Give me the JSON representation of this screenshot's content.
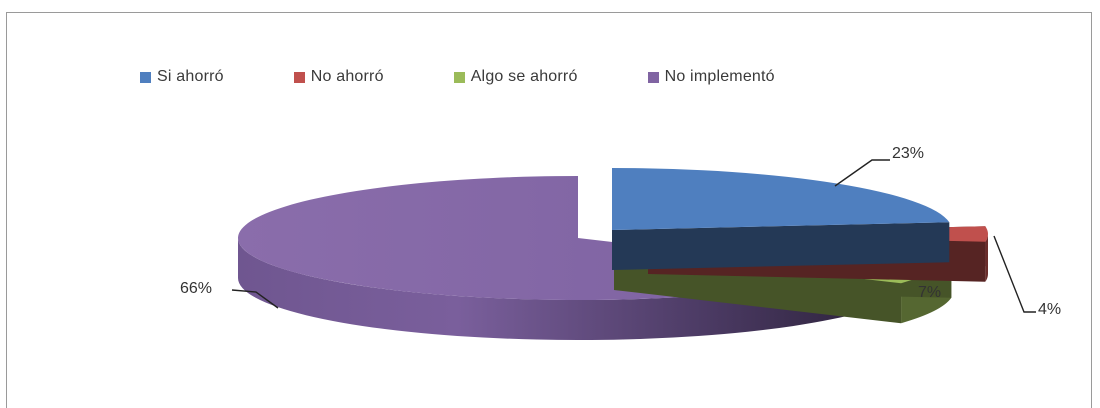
{
  "colors": {
    "si_ahorro": "#4f7fbf",
    "no_ahorro": "#c0504d",
    "algo_se_ahorro": "#9bbb59",
    "no_implemento": "#8064a2"
  },
  "legend": [
    {
      "label": "Si ahorró",
      "color": "#4f7fbf"
    },
    {
      "label": "No ahorró",
      "color": "#c0504d"
    },
    {
      "label": "Algo se ahorró",
      "color": "#9bbb59"
    },
    {
      "label": "No implementó",
      "color": "#8064a2"
    }
  ],
  "chart_data": {
    "type": "pie",
    "style": "3d-exploded",
    "legend_position": "top",
    "categories": [
      "Si ahorró",
      "No ahorró",
      "Algo se ahorró",
      "No implementó"
    ],
    "values": [
      23,
      4,
      7,
      66
    ],
    "data_labels": [
      "23%",
      "4%",
      "7%",
      "66%"
    ],
    "colors": [
      "#4f7fbf",
      "#c0504d",
      "#9bbb59",
      "#8064a2"
    ]
  }
}
